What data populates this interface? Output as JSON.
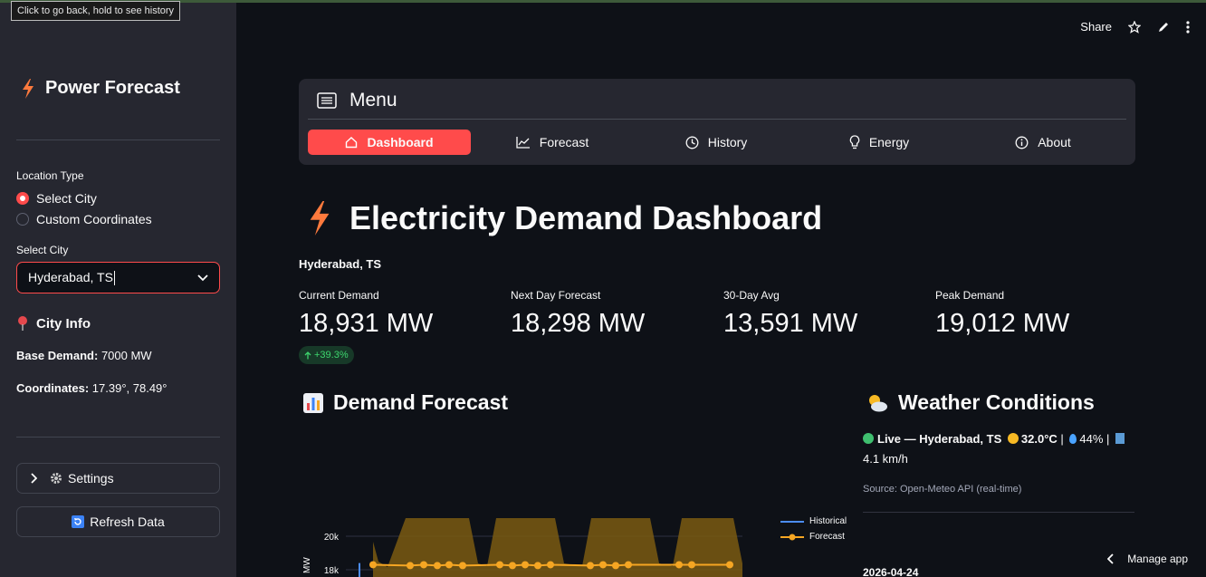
{
  "tooltip": "Click to go back, hold to see history",
  "sidebar": {
    "title": "Power Forecast",
    "location_type_label": "Location Type",
    "radio_options": [
      "Select City",
      "Custom Coordinates"
    ],
    "selected_radio": "Select City",
    "select_city_label": "Select City",
    "select_city_value": "Hyderabad, TS",
    "city_info_title": "City Info",
    "base_demand_label": "Base Demand:",
    "base_demand_value": "7000 MW",
    "coordinates_label": "Coordinates:",
    "coordinates_value": "17.39°, 78.49°",
    "settings_label": "Settings",
    "refresh_label": "Refresh Data"
  },
  "topbar": {
    "share_label": "Share"
  },
  "menu": {
    "title": "Menu",
    "items": [
      {
        "label": "Dashboard",
        "icon": "house-icon",
        "active": true
      },
      {
        "label": "Forecast",
        "icon": "chart-line-icon",
        "active": false
      },
      {
        "label": "History",
        "icon": "clock-icon",
        "active": false
      },
      {
        "label": "Energy",
        "icon": "lightbulb-icon",
        "active": false
      },
      {
        "label": "About",
        "icon": "info-icon",
        "active": false
      }
    ]
  },
  "main": {
    "title": "Electricity Demand Dashboard",
    "location": "Hyderabad, TS",
    "metrics": [
      {
        "label": "Current Demand",
        "value": "18,931 MW"
      },
      {
        "label": "Next Day Forecast",
        "value": "18,298 MW"
      },
      {
        "label": "30-Day Avg",
        "value": "13,591 MW"
      },
      {
        "label": "Peak Demand",
        "value": "19,012 MW"
      }
    ],
    "delta": "+39.3%",
    "demand_forecast_title": "Demand Forecast",
    "weather_title": "Weather Conditions",
    "weather_live": "Live — Hyderabad, TS",
    "weather_temp": "32.0°C",
    "weather_humidity": "44%",
    "weather_wind": "4.1 km/h",
    "weather_source": "Source: Open-Meteo API (real-time)",
    "weather_date": "2026-04-24"
  },
  "chart_data": {
    "type": "line",
    "series": [
      {
        "name": "Historical",
        "values": [
          17500,
          18400
        ]
      },
      {
        "name": "Forecast",
        "values": [
          18300,
          18250,
          18300,
          18250,
          18300,
          18250,
          18300,
          18250,
          18300,
          18250,
          18300,
          18250,
          18300,
          18250,
          18300,
          18300,
          18300,
          18300
        ]
      }
    ],
    "yticks": [
      "20k",
      "18k"
    ],
    "ylabel": "MW",
    "legend": "top-right",
    "colors": {
      "Historical": "#4c8df6",
      "Forecast": "#f5a623",
      "band": "#7a5a12"
    }
  },
  "manage_app_label": "Manage app"
}
